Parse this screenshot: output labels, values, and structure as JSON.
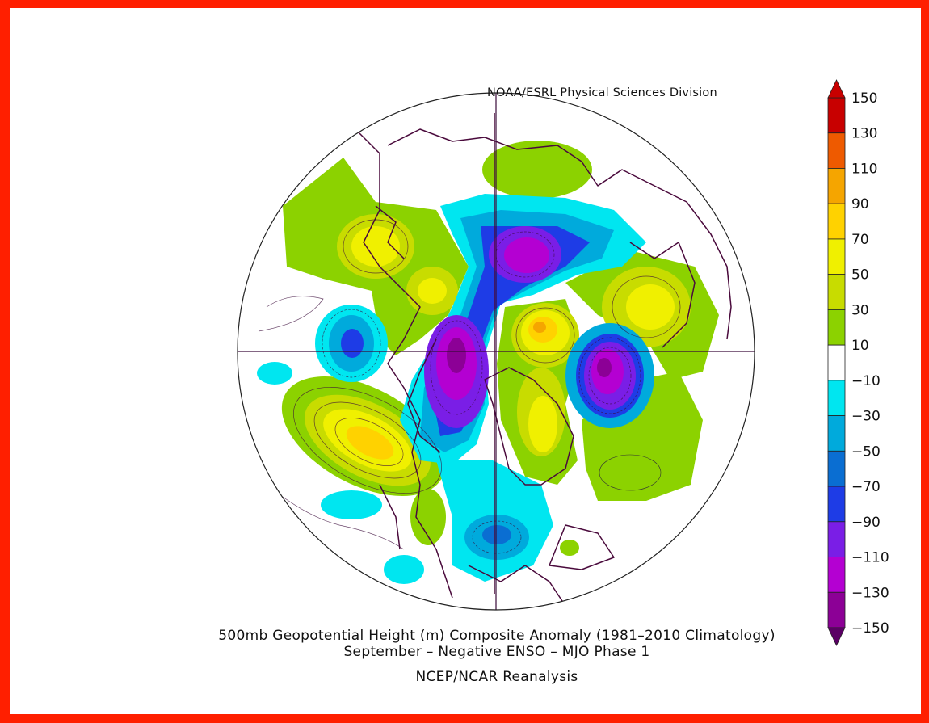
{
  "map": {
    "credit": "NOAA/ESRL Physical Sciences Division",
    "title_line1": "500mb Geopotential Height (m) Composite Anomaly (1981–2010 Climatology)",
    "title_line2": "September – Negative ENSO – MJO Phase 1",
    "source": "NCEP/NCAR Reanalysis",
    "projection": "north polar stereographic",
    "colors": {
      "frame": "#ff1f00",
      "background": "#ffffff"
    }
  },
  "colorbar": {
    "tick_labels": [
      "150",
      "130",
      "110",
      "90",
      "70",
      "50",
      "30",
      "10",
      "−10",
      "−30",
      "−50",
      "−70",
      "−90",
      "−110",
      "−130",
      "−150"
    ],
    "bins": [
      {
        "range": "130 to 150",
        "color": "#c80000"
      },
      {
        "range": "110 to 130",
        "color": "#ee5a00"
      },
      {
        "range": "90 to 110",
        "color": "#f5a500"
      },
      {
        "range": "70 to 90",
        "color": "#ffd200"
      },
      {
        "range": "50 to 70",
        "color": "#f0f000"
      },
      {
        "range": "30 to 50",
        "color": "#c8dc00"
      },
      {
        "range": "10 to 30",
        "color": "#8cd200"
      },
      {
        "range": "-10 to 10",
        "color": "#ffffff"
      },
      {
        "range": "-30 to -10",
        "color": "#00e6f0"
      },
      {
        "range": "-50 to -30",
        "color": "#00aadc"
      },
      {
        "range": "-70 to -50",
        "color": "#0a6ed2"
      },
      {
        "range": "-90 to -70",
        "color": "#1e3ce6"
      },
      {
        "range": "-110 to -90",
        "color": "#7a1ee6"
      },
      {
        "range": "-130 to -110",
        "color": "#b400d2"
      },
      {
        "range": "-150 to -130",
        "color": "#8c0096"
      }
    ],
    "over_color": "#c80000",
    "under_color": "#5a0064"
  }
}
